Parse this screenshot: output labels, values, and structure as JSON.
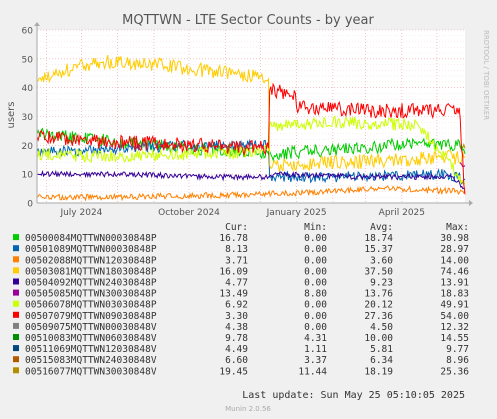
{
  "chart_data": {
    "type": "line",
    "title": "MQTTWN - LTE Sector Counts - by year",
    "ylabel": "users",
    "watermark": "RRDTOOL / TOBI OETIKER",
    "ylim": [
      0,
      60
    ],
    "y_ticks": [
      0,
      10,
      20,
      30,
      40,
      50,
      60
    ],
    "x_range": [
      "2024-05-24",
      "2025-05-25"
    ],
    "x_ticks": [
      {
        "date": "2024-07-01",
        "label": "July 2024"
      },
      {
        "date": "2024-10-01",
        "label": "October 2024"
      },
      {
        "date": "2025-01-01",
        "label": "January 2025"
      },
      {
        "date": "2025-04-01",
        "label": "April 2025"
      }
    ],
    "grid": true,
    "background_color": "#ffffff",
    "grid_color": "#e8a0a0",
    "legend_headers": {
      "cur": "Cur:",
      "min": "Min:",
      "avg": "Avg:",
      "max": "Max:"
    },
    "series": [
      {
        "name": "00500084MQTTWN00030848P",
        "color": "#00cc00",
        "cur": "16.78",
        "min": "0.00",
        "avg": "18.74",
        "max": "30.98",
        "points": [
          [
            "2024-05-24",
            24
          ],
          [
            "2024-07-15",
            22
          ],
          [
            "2024-10-01",
            19
          ],
          [
            "2024-11-15",
            18
          ],
          [
            "2024-12-08",
            17
          ],
          [
            "2024-12-15",
            17
          ],
          [
            "2025-01-15",
            18
          ],
          [
            "2025-03-01",
            19
          ],
          [
            "2025-04-15",
            21
          ],
          [
            "2025-05-22",
            20
          ],
          [
            "2025-05-25",
            17
          ]
        ]
      },
      {
        "name": "00501089MQTTWN00030848P",
        "color": "#0066b3",
        "cur": "8.13",
        "min": "0.00",
        "avg": "15.37",
        "max": "28.97",
        "points": [
          [
            "2024-05-24",
            18
          ],
          [
            "2024-07-01",
            18
          ],
          [
            "2024-10-01",
            20
          ],
          [
            "2024-12-08",
            20
          ],
          [
            "2024-12-09",
            9
          ],
          [
            "2025-02-01",
            9
          ],
          [
            "2025-05-10",
            10
          ],
          [
            "2025-05-25",
            8
          ]
        ]
      },
      {
        "name": "00502088MQTTWN12030848P",
        "color": "#ff8000",
        "cur": "3.71",
        "min": "0.00",
        "avg": "3.60",
        "max": "14.00",
        "points": [
          [
            "2024-05-24",
            2
          ],
          [
            "2024-08-01",
            2
          ],
          [
            "2024-12-01",
            3
          ],
          [
            "2025-02-01",
            4
          ],
          [
            "2025-03-15",
            5
          ],
          [
            "2025-05-25",
            4
          ]
        ]
      },
      {
        "name": "00503081MQTTWN18030848P",
        "color": "#ffcc00",
        "cur": "16.09",
        "min": "0.00",
        "avg": "37.50",
        "max": "74.46",
        "points": [
          [
            "2024-05-24",
            42
          ],
          [
            "2024-06-15",
            46
          ],
          [
            "2024-07-15",
            49
          ],
          [
            "2024-09-01",
            48
          ],
          [
            "2024-10-15",
            46
          ],
          [
            "2024-12-08",
            43
          ],
          [
            "2024-12-09",
            13
          ],
          [
            "2025-05-25",
            16
          ]
        ]
      },
      {
        "name": "00504092MQTTWN24030848P",
        "color": "#330099",
        "cur": "4.77",
        "min": "0.00",
        "avg": "9.23",
        "max": "13.91",
        "points": [
          [
            "2024-05-24",
            10
          ],
          [
            "2024-08-01",
            10
          ],
          [
            "2024-11-01",
            9
          ],
          [
            "2024-12-08",
            9
          ],
          [
            "2024-12-15",
            10
          ],
          [
            "2025-03-01",
            9
          ],
          [
            "2025-05-15",
            9
          ],
          [
            "2025-05-25",
            5
          ]
        ]
      },
      {
        "name": "00505085MQTTWN30030848P",
        "color": "#990099",
        "cur": "13.49",
        "min": "8.80",
        "avg": "13.76",
        "max": "18.83",
        "points": [
          [
            "2025-05-21",
            14
          ],
          [
            "2025-05-25",
            13
          ]
        ]
      },
      {
        "name": "00506078MQTTWN03030848P",
        "color": "#ccff00",
        "cur": "6.92",
        "min": "0.00",
        "avg": "20.12",
        "max": "49.91",
        "points": [
          [
            "2024-05-24",
            17
          ],
          [
            "2024-08-01",
            16
          ],
          [
            "2024-10-01",
            17
          ],
          [
            "2024-12-08",
            18
          ],
          [
            "2024-12-09",
            27
          ],
          [
            "2025-02-01",
            28
          ],
          [
            "2025-04-15",
            27
          ],
          [
            "2025-05-25",
            7
          ]
        ]
      },
      {
        "name": "00507079MQTTWN09030848P",
        "color": "#ff0000",
        "cur": "3.30",
        "min": "0.00",
        "avg": "27.36",
        "max": "54.00",
        "points": [
          [
            "2024-05-24",
            23
          ],
          [
            "2024-08-01",
            21
          ],
          [
            "2024-10-01",
            20
          ],
          [
            "2024-12-08",
            19
          ],
          [
            "2024-12-09",
            39
          ],
          [
            "2024-12-31",
            38
          ],
          [
            "2025-01-01",
            33
          ],
          [
            "2025-03-01",
            32
          ],
          [
            "2025-04-20",
            32
          ],
          [
            "2025-05-20",
            33
          ],
          [
            "2025-05-25",
            3
          ]
        ]
      },
      {
        "name": "00509075MQTTWN00030848V",
        "color": "#808080",
        "cur": "4.38",
        "min": "0.00",
        "avg": "4.50",
        "max": "12.32",
        "points": []
      },
      {
        "name": "00510083MQTTWN06030848V",
        "color": "#008f00",
        "cur": "9.78",
        "min": "4.31",
        "avg": "10.00",
        "max": "14.55",
        "points": []
      },
      {
        "name": "00511069MQTTWN12030848V",
        "color": "#00487d",
        "cur": "4.49",
        "min": "1.11",
        "avg": "5.81",
        "max": "9.77",
        "points": []
      },
      {
        "name": "00515083MQTTWN24030848V",
        "color": "#b35a00",
        "cur": "6.60",
        "min": "3.37",
        "avg": "6.34",
        "max": "8.96",
        "points": []
      },
      {
        "name": "00516077MQTTWN30030848V",
        "color": "#b38f00",
        "cur": "19.45",
        "min": "11.44",
        "avg": "18.19",
        "max": "25.36",
        "points": [
          [
            "2025-05-23",
            19
          ],
          [
            "2025-05-25",
            19
          ]
        ]
      }
    ],
    "last_update": "Last update: Sun May 25 05:10:05 2025",
    "generator": "Munin 2.0.56"
  }
}
